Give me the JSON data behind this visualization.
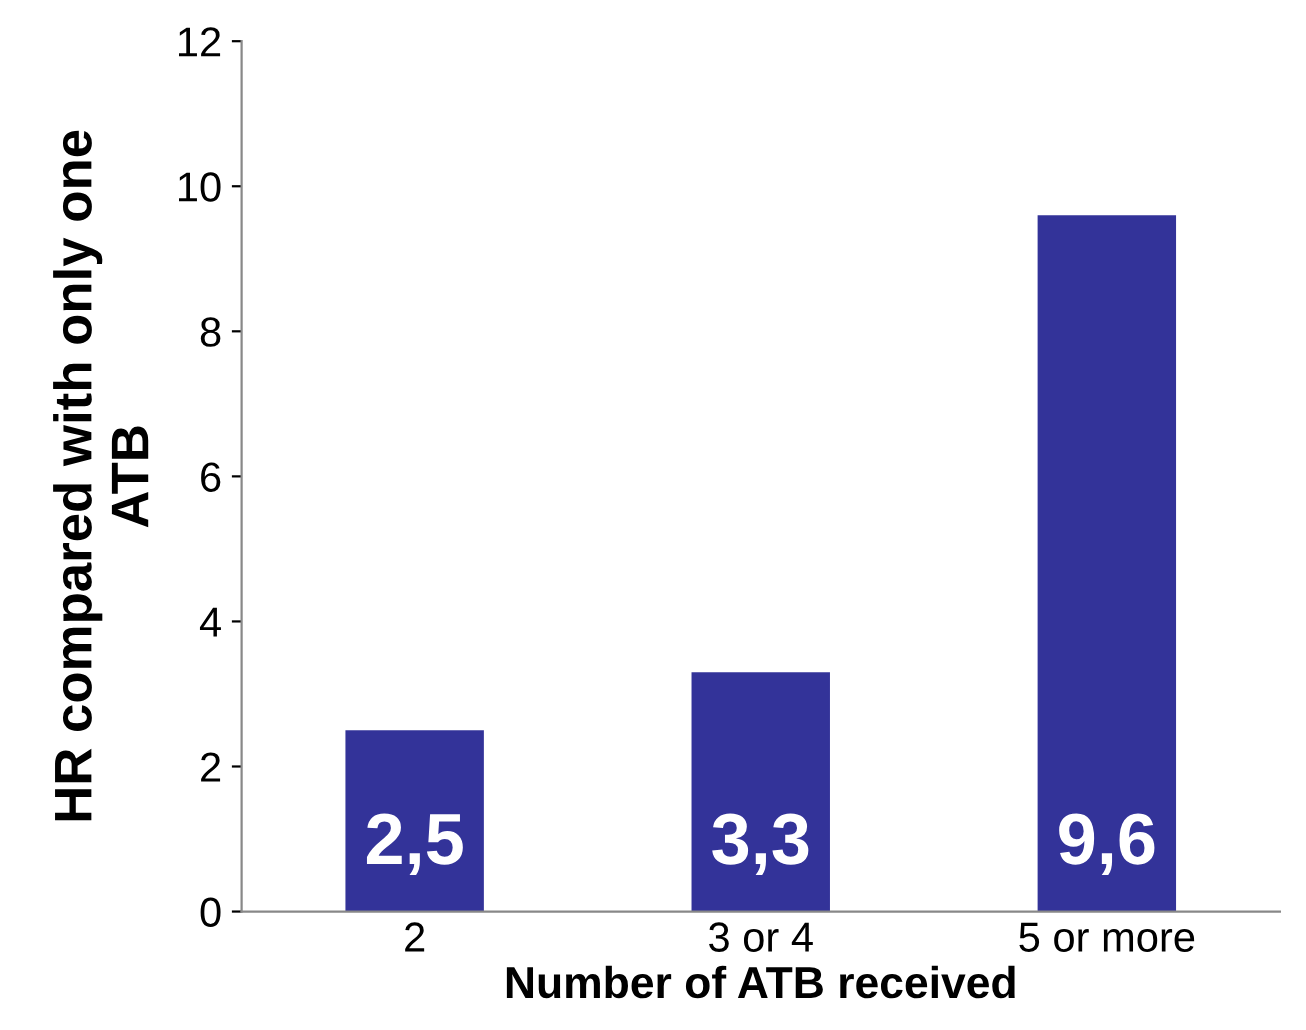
{
  "chart_data": {
    "type": "bar",
    "xlabel": "Number of ATB received",
    "ylabel": "HR compared with only one\nATB",
    "categories": [
      "2",
      "3 or 4",
      "5 or more"
    ],
    "values": [
      2.5,
      3.3,
      9.6
    ],
    "value_labels": [
      "2,5",
      "3,3",
      "9,6"
    ],
    "color": "#333399",
    "ylim": [
      0,
      12
    ],
    "yticks": [
      0,
      2,
      4,
      6,
      8,
      10,
      12
    ],
    "grid": false,
    "legend": false
  }
}
